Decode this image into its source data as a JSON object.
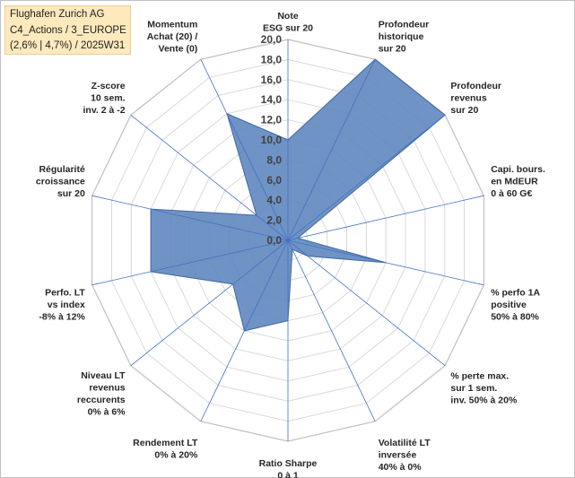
{
  "title_box": {
    "line1": "Flughafen Zurich AG",
    "line2": "C4_Actions / 3_EUROPE",
    "line3": "(2,6% | 4,7%) / 2025W31"
  },
  "colors": {
    "fill": "#5b84bd",
    "stroke": "#3f66a3",
    "spokes": "#4472c4",
    "grid": "#d9d9d9",
    "title_bg": "#fde9bc"
  },
  "chart_data": {
    "type": "radar",
    "ylim": [
      0,
      20
    ],
    "tick_labels": [
      "0,0",
      "2,0",
      "4,0",
      "6,0",
      "8,0",
      "10,0",
      "12,0",
      "14,0",
      "16,0",
      "18,0",
      "20,0"
    ],
    "grid": true,
    "axes": [
      {
        "label": [
          "Note",
          "ESG sur 20"
        ],
        "value": 10.0
      },
      {
        "label": [
          "Profondeur",
          "historique",
          "sur 20"
        ],
        "value": 20.0
      },
      {
        "label": [
          "Profondeur",
          "revenus",
          "sur 20"
        ],
        "value": 20.0
      },
      {
        "label": [
          "Capi. bours.",
          "en MdEUR",
          "0 à 60 G€"
        ],
        "value": 1.0
      },
      {
        "label": [
          "% perfo 1A",
          "positive",
          "50% à 80%"
        ],
        "value": 10.0
      },
      {
        "label": [
          "% perte max.",
          "sur 1 sem.",
          "inv. 50% à 20%"
        ],
        "value": 2.5
      },
      {
        "label": [
          "Volatilité LT",
          "inversée",
          "40% à 0%"
        ],
        "value": 1.0
      },
      {
        "label": [
          "Ratio Sharpe",
          "0 à 1"
        ],
        "value": 8.0
      },
      {
        "label": [
          "Rendement LT",
          "0% à 20%"
        ],
        "value": 10.0
      },
      {
        "label": [
          "Niveau LT",
          "revenus",
          "reccurents",
          "0% à 6%"
        ],
        "value": 7.0
      },
      {
        "label": [
          "Perfo. LT",
          "vs index",
          "-8% à 12%"
        ],
        "value": 14.0
      },
      {
        "label": [
          "Régularité",
          "croissance",
          "sur 20"
        ],
        "value": 14.0
      },
      {
        "label": [
          "Z-score",
          "10 sem.",
          "inv. 2 à -2"
        ],
        "value": 4.0
      },
      {
        "label": [
          "Momentum",
          "Achat (20) /",
          "Vente (0)"
        ],
        "value": 14.0
      }
    ]
  }
}
